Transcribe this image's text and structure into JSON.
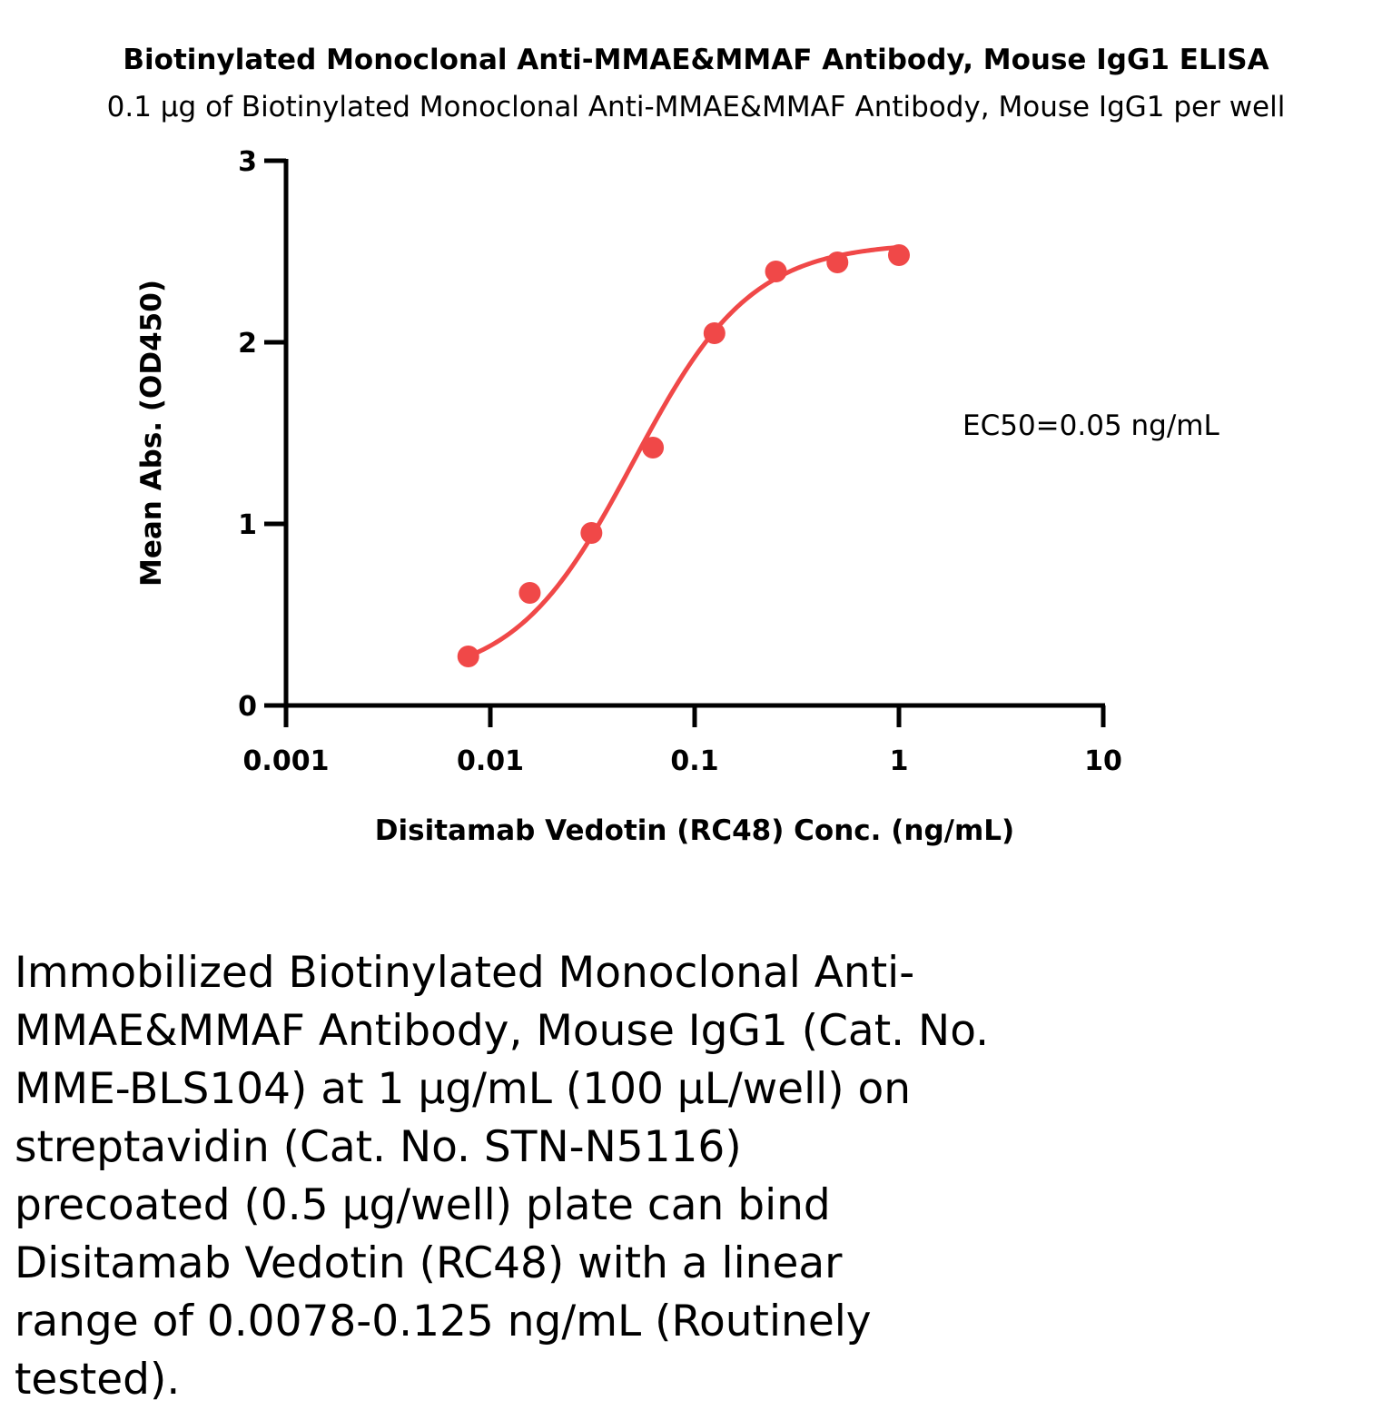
{
  "chart_data": {
    "type": "scatter",
    "title": "Biotinylated Monoclonal Anti-MMAE&MMAF Antibody, Mouse IgG1 ELISA",
    "subtitle": "0.1 µg of Biotinylated Monoclonal Anti-MMAE&MMAF Antibody, Mouse IgG1 per well",
    "xlabel": "Disitamab Vedotin (RC48) Conc. (ng/mL)",
    "ylabel": "Mean Abs. (OD450)",
    "xscale": "log",
    "xlim": [
      0.001,
      10
    ],
    "ylim": [
      0,
      3
    ],
    "xticks": [
      "0.001",
      "0.01",
      "0.1",
      "1",
      "10"
    ],
    "yticks": [
      "0",
      "1",
      "2",
      "3"
    ],
    "grid": false,
    "color": "#f04848",
    "points": [
      {
        "x": 0.0078,
        "y": 0.27
      },
      {
        "x": 0.0156,
        "y": 0.62
      },
      {
        "x": 0.03125,
        "y": 0.95
      },
      {
        "x": 0.0625,
        "y": 1.42
      },
      {
        "x": 0.125,
        "y": 2.05
      },
      {
        "x": 0.25,
        "y": 2.39
      },
      {
        "x": 0.5,
        "y": 2.44
      },
      {
        "x": 1,
        "y": 2.48
      }
    ],
    "fit": {
      "bottom": 0.13,
      "top": 2.55,
      "ec50": 0.05,
      "hill": 1.5
    },
    "annotation": "EC50=0.05 ng/mL"
  },
  "caption_lines": [
    "Immobilized Biotinylated Monoclonal Anti-",
    "MMAE&MMAF Antibody, Mouse IgG1 (Cat. No.",
    "MME-BLS104) at 1 µg/mL (100 µL/well) on",
    "streptavidin (Cat. No. STN-N5116)",
    "precoated (0.5 µg/well) plate can bind",
    "Disitamab Vedotin (RC48)  with a linear",
    "range of 0.0078-0.125 ng/mL (Routinely",
    "tested)."
  ]
}
